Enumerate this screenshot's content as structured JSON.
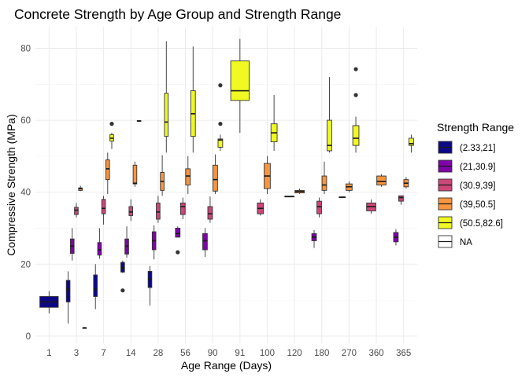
{
  "chart_data": {
    "type": "boxplot",
    "title": "Concrete Strength by Age Group and Strength Range",
    "xlabel": "Age Range (Days)",
    "ylabel": "Compressive Strength (MPa)",
    "ylim": [
      -2,
      86
    ],
    "yticks": [
      0,
      20,
      40,
      60,
      80
    ],
    "grid": true,
    "legend_position": "right",
    "categories": [
      "1",
      "3",
      "7",
      "14",
      "28",
      "56",
      "90",
      "91",
      "100",
      "120",
      "180",
      "270",
      "360",
      "365"
    ],
    "legend": {
      "title": "Strength Range",
      "entries": [
        {
          "label": "(2.33,21]",
          "color": "#0D0887"
        },
        {
          "label": "(21,30.9]",
          "color": "#7E03A8"
        },
        {
          "label": "(30.9,39]",
          "color": "#CC4778"
        },
        {
          "label": "(39,50.5]",
          "color": "#F89540"
        },
        {
          "label": "(50.5,82.6]",
          "color": "#F0F921"
        },
        {
          "label": "NA",
          "color": "#FFFFFF"
        }
      ]
    },
    "boxes": [
      {
        "category": "1",
        "series": 0,
        "nseries": 1,
        "min": 6.3,
        "q1": 8.0,
        "median": 9.5,
        "q3": 11.0,
        "max": 12.5,
        "outliers": []
      },
      {
        "category": "3",
        "series": 0,
        "nseries": 4,
        "min": 3.5,
        "q1": 9.5,
        "median": 13.0,
        "q3": 15.5,
        "max": 18.0,
        "outliers": []
      },
      {
        "category": "3",
        "series": 1,
        "nseries": 4,
        "min": 21.0,
        "q1": 23.0,
        "median": 25.0,
        "q3": 27.0,
        "max": 30.0,
        "outliers": []
      },
      {
        "category": "3",
        "series": 2,
        "nseries": 4,
        "min": 33.0,
        "q1": 33.8,
        "median": 35.0,
        "q3": 35.8,
        "max": 37.0,
        "outliers": []
      },
      {
        "category": "3",
        "series": 3,
        "nseries": 4,
        "min": 40.3,
        "q1": 40.5,
        "median": 41.0,
        "q3": 41.2,
        "max": 41.8,
        "outliers": []
      },
      {
        "category": "3",
        "series": -1,
        "nseries": 4,
        "min": 2.33,
        "q1": 2.33,
        "median": 2.33,
        "q3": 2.33,
        "max": 2.33,
        "outliers": [],
        "na_index": 4,
        "na_total": 5
      },
      {
        "category": "7",
        "series": 0,
        "nseries": 5,
        "min": 7.5,
        "q1": 11.0,
        "median": 13.0,
        "q3": 17.0,
        "max": 20.0,
        "outliers": []
      },
      {
        "category": "7",
        "series": 1,
        "nseries": 5,
        "min": 21.5,
        "q1": 22.5,
        "median": 24.0,
        "q3": 26.0,
        "max": 30.0,
        "outliers": []
      },
      {
        "category": "7",
        "series": 2,
        "nseries": 5,
        "min": 31.0,
        "q1": 34.0,
        "median": 35.5,
        "q3": 38.0,
        "max": 39.0,
        "outliers": []
      },
      {
        "category": "7",
        "series": 3,
        "nseries": 5,
        "min": 39.5,
        "q1": 43.5,
        "median": 46.5,
        "q3": 49.0,
        "max": 51.0,
        "outliers": []
      },
      {
        "category": "7",
        "series": 4,
        "nseries": 5,
        "min": 52.0,
        "q1": 54.2,
        "median": 55.0,
        "q3": 56.0,
        "max": 56.5,
        "outliers": [
          59.0
        ]
      },
      {
        "category": "14",
        "series": 0,
        "nseries": 5,
        "min": 17.5,
        "q1": 17.8,
        "median": 19.0,
        "q3": 20.5,
        "max": 21.0,
        "outliers": [
          12.7
        ]
      },
      {
        "category": "14",
        "series": 1,
        "nseries": 5,
        "min": 21.8,
        "q1": 22.8,
        "median": 25.0,
        "q3": 27.0,
        "max": 30.5,
        "outliers": []
      },
      {
        "category": "14",
        "series": 2,
        "nseries": 5,
        "min": 32.0,
        "q1": 33.5,
        "median": 34.5,
        "q3": 36.0,
        "max": 38.0,
        "outliers": []
      },
      {
        "category": "14",
        "series": 3,
        "nseries": 5,
        "min": 41.5,
        "q1": 42.3,
        "median": 42.5,
        "q3": 47.5,
        "max": 48.5,
        "outliers": []
      },
      {
        "category": "14",
        "series": 4,
        "nseries": 5,
        "min": 59.7,
        "q1": 59.8,
        "median": 59.8,
        "q3": 59.9,
        "max": 59.9,
        "outliers": []
      },
      {
        "category": "28",
        "series": 0,
        "nseries": 5,
        "min": 8.5,
        "q1": 13.5,
        "median": 15.8,
        "q3": 18.0,
        "max": 19.5,
        "outliers": []
      },
      {
        "category": "28",
        "series": 1,
        "nseries": 5,
        "min": 21.3,
        "q1": 24.0,
        "median": 26.5,
        "q3": 29.0,
        "max": 30.8,
        "outliers": []
      },
      {
        "category": "28",
        "series": 2,
        "nseries": 5,
        "min": 31.5,
        "q1": 32.5,
        "median": 34.5,
        "q3": 37.0,
        "max": 39.0,
        "outliers": []
      },
      {
        "category": "28",
        "series": 3,
        "nseries": 5,
        "min": 39.0,
        "q1": 40.5,
        "median": 43.0,
        "q3": 45.5,
        "max": 50.3,
        "outliers": []
      },
      {
        "category": "28",
        "series": 4,
        "nseries": 5,
        "min": 51.0,
        "q1": 55.5,
        "median": 59.5,
        "q3": 67.5,
        "max": 82.0,
        "outliers": []
      },
      {
        "category": "56",
        "series": 1,
        "nseries": 4,
        "min": 27.5,
        "q1": 27.5,
        "median": 28.5,
        "q3": 30.0,
        "max": 30.5,
        "outliers": [
          23.3
        ]
      },
      {
        "category": "56",
        "series": 2,
        "nseries": 4,
        "min": 32.5,
        "q1": 33.8,
        "median": 36.0,
        "q3": 37.0,
        "max": 38.5,
        "outliers": []
      },
      {
        "category": "56",
        "series": 3,
        "nseries": 4,
        "min": 39.5,
        "q1": 42.0,
        "median": 44.5,
        "q3": 46.5,
        "max": 50.0,
        "outliers": []
      },
      {
        "category": "56",
        "series": 4,
        "nseries": 4,
        "min": 51.0,
        "q1": 55.5,
        "median": 61.8,
        "q3": 68.2,
        "max": 80.5,
        "outliers": []
      },
      {
        "category": "90",
        "series": 1,
        "nseries": 4,
        "min": 22.0,
        "q1": 24.0,
        "median": 26.5,
        "q3": 28.5,
        "max": 30.0,
        "outliers": []
      },
      {
        "category": "90",
        "series": 2,
        "nseries": 4,
        "min": 31.5,
        "q1": 32.5,
        "median": 34.0,
        "q3": 36.0,
        "max": 38.8,
        "outliers": []
      },
      {
        "category": "90",
        "series": 3,
        "nseries": 4,
        "min": 39.5,
        "q1": 40.3,
        "median": 43.5,
        "q3": 47.5,
        "max": 50.5,
        "outliers": []
      },
      {
        "category": "90",
        "series": 4,
        "nseries": 4,
        "min": 51.5,
        "q1": 52.5,
        "median": 54.5,
        "q3": 54.8,
        "max": 56.0,
        "outliers": [
          59.0,
          69.7
        ]
      },
      {
        "category": "91",
        "series": 4,
        "nseries": 1,
        "min": 56.5,
        "q1": 65.5,
        "median": 68.2,
        "q3": 76.5,
        "max": 82.6,
        "outliers": []
      },
      {
        "category": "100",
        "series": 2,
        "nseries": 3,
        "min": 33.5,
        "q1": 34.0,
        "median": 35.5,
        "q3": 37.0,
        "max": 38.0,
        "outliers": []
      },
      {
        "category": "100",
        "series": 3,
        "nseries": 3,
        "min": 39.5,
        "q1": 41.0,
        "median": 44.5,
        "q3": 48.0,
        "max": 50.0,
        "outliers": []
      },
      {
        "category": "100",
        "series": 4,
        "nseries": 3,
        "min": 51.5,
        "q1": 54.0,
        "median": 56.5,
        "q3": 59.0,
        "max": 67.0,
        "outliers": []
      },
      {
        "category": "120",
        "series": 2,
        "nseries": 2,
        "min": 38.6,
        "q1": 38.7,
        "median": 38.8,
        "q3": 38.9,
        "max": 39.0,
        "outliers": []
      },
      {
        "category": "120",
        "series": 3,
        "nseries": 2,
        "min": 39.5,
        "q1": 39.8,
        "median": 40.2,
        "q3": 40.5,
        "max": 41.0,
        "outliers": []
      },
      {
        "category": "180",
        "series": 1,
        "nseries": 4,
        "min": 24.5,
        "q1": 26.5,
        "median": 27.5,
        "q3": 28.5,
        "max": 29.5,
        "outliers": []
      },
      {
        "category": "180",
        "series": 2,
        "nseries": 4,
        "min": 33.0,
        "q1": 34.0,
        "median": 36.0,
        "q3": 37.5,
        "max": 38.5,
        "outliers": []
      },
      {
        "category": "180",
        "series": 3,
        "nseries": 4,
        "min": 39.5,
        "q1": 40.5,
        "median": 42.0,
        "q3": 44.5,
        "max": 48.5,
        "outliers": []
      },
      {
        "category": "180",
        "series": 4,
        "nseries": 4,
        "min": 51.0,
        "q1": 51.5,
        "median": 53.0,
        "q3": 60.0,
        "max": 72.0,
        "outliers": []
      },
      {
        "category": "270",
        "series": 2,
        "nseries": 3,
        "min": 38.4,
        "q1": 38.5,
        "median": 38.6,
        "q3": 38.7,
        "max": 38.8,
        "outliers": []
      },
      {
        "category": "270",
        "series": 3,
        "nseries": 3,
        "min": 40.0,
        "q1": 40.5,
        "median": 41.5,
        "q3": 42.3,
        "max": 43.0,
        "outliers": []
      },
      {
        "category": "270",
        "series": 4,
        "nseries": 3,
        "min": 51.0,
        "q1": 53.0,
        "median": 55.0,
        "q3": 58.5,
        "max": 61.0,
        "outliers": [
          67.0,
          74.2
        ]
      },
      {
        "category": "360",
        "series": 2,
        "nseries": 2,
        "min": 34.0,
        "q1": 34.8,
        "median": 36.0,
        "q3": 37.0,
        "max": 38.0,
        "outliers": []
      },
      {
        "category": "360",
        "series": 3,
        "nseries": 2,
        "min": 41.5,
        "q1": 42.0,
        "median": 43.0,
        "q3": 44.5,
        "max": 45.0,
        "outliers": []
      },
      {
        "category": "365",
        "series": 1,
        "nseries": 4,
        "min": 25.2,
        "q1": 26.2,
        "median": 27.5,
        "q3": 28.8,
        "max": 29.7,
        "outliers": []
      },
      {
        "category": "365",
        "series": 2,
        "nseries": 4,
        "min": 36.5,
        "q1": 37.5,
        "median": 38.5,
        "q3": 39.0,
        "max": 39.0,
        "outliers": []
      },
      {
        "category": "365",
        "series": 3,
        "nseries": 4,
        "min": 41.0,
        "q1": 41.5,
        "median": 42.5,
        "q3": 43.5,
        "max": 44.2,
        "outliers": []
      },
      {
        "category": "365",
        "series": 4,
        "nseries": 4,
        "min": 51.0,
        "q1": 53.0,
        "median": 53.5,
        "q3": 55.0,
        "max": 56.0,
        "outliers": []
      }
    ]
  }
}
